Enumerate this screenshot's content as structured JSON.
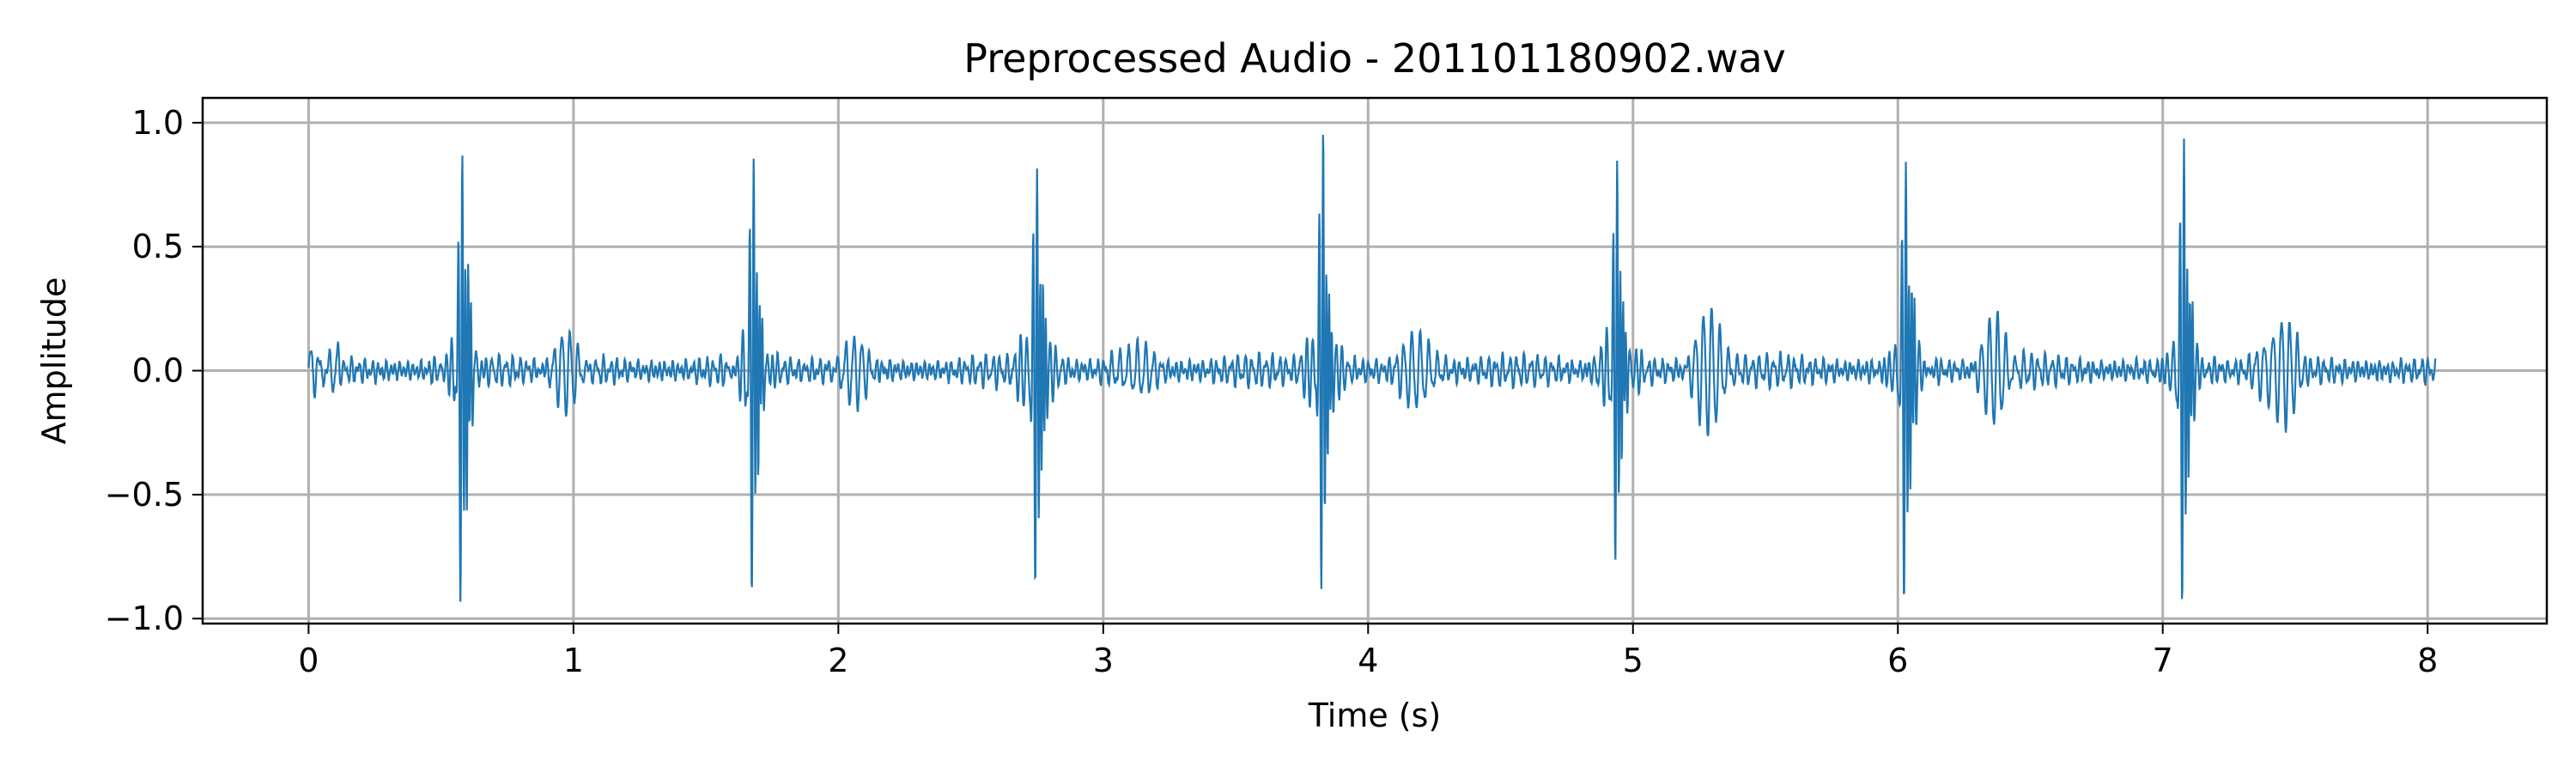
{
  "chart_data": {
    "type": "line",
    "title": "Preprocessed Audio - 201101180902.wav",
    "xlabel": "Time (s)",
    "ylabel": "Amplitude",
    "xlim": [
      -0.4,
      8.45
    ],
    "ylim": [
      -1.02,
      1.1
    ],
    "xticks": [
      0,
      1,
      2,
      3,
      4,
      5,
      6,
      7,
      8
    ],
    "xtick_labels": [
      "0",
      "1",
      "2",
      "3",
      "4",
      "5",
      "6",
      "7",
      "8"
    ],
    "yticks": [
      1.0,
      0.5,
      0.0,
      -0.5,
      -1.0
    ],
    "ytick_labels": [
      "1.0",
      "0.5",
      "0.0",
      "−0.5",
      "−1.0"
    ],
    "grid": true,
    "line_color": "#1f77b4",
    "duration_s": 8.03,
    "events": [
      {
        "t": 0.58,
        "pos": 0.88,
        "neg": -0.92,
        "second_pos": 0.66
      },
      {
        "t": 1.68,
        "pos": 0.89,
        "neg": -0.86,
        "second_pos": 0.47
      },
      {
        "t": 2.75,
        "pos": 0.81,
        "neg": -0.87,
        "second_pos": 0.55
      },
      {
        "t": 3.83,
        "pos": 1.0,
        "neg": -0.87,
        "second_pos": 0.47
      },
      {
        "t": 4.94,
        "pos": 0.9,
        "neg": -0.78,
        "second_pos": 0.45
      },
      {
        "t": 6.03,
        "pos": 0.8,
        "neg": -0.88,
        "second_pos": 0.58
      },
      {
        "t": 7.08,
        "pos": 0.92,
        "neg": -0.89,
        "second_pos": 0.54
      }
    ],
    "secondary_bursts": [
      {
        "t": 0.98,
        "amp": 0.14
      },
      {
        "t": 2.05,
        "amp": 0.12
      },
      {
        "t": 3.12,
        "amp": 0.12
      },
      {
        "t": 4.19,
        "amp": 0.16
      },
      {
        "t": 5.29,
        "amp": 0.24
      },
      {
        "t": 6.37,
        "amp": 0.2
      },
      {
        "t": 7.44,
        "amp": 0.22
      }
    ],
    "baseline_noise_amp": 0.05
  }
}
